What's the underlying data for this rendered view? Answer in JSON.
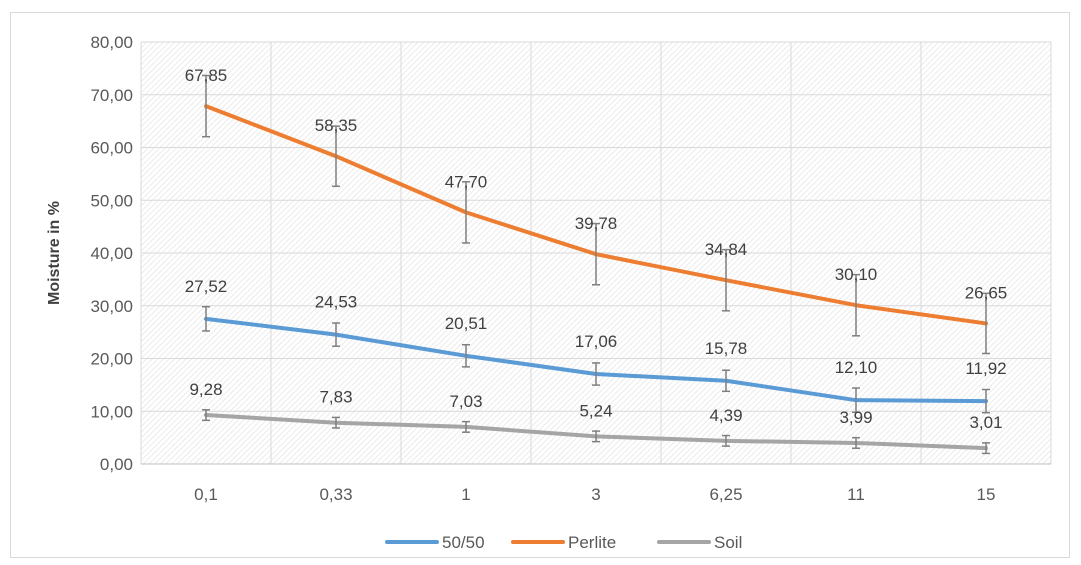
{
  "chart_data": {
    "type": "line",
    "title": "",
    "xlabel": "",
    "ylabel": "Moisture in %",
    "categories": [
      "0,1",
      "0,33",
      "1",
      "3",
      "6,25",
      "11",
      "15"
    ],
    "ylim": [
      0,
      80
    ],
    "yticks": [
      "0,00",
      "10,00",
      "20,00",
      "30,00",
      "40,00",
      "50,00",
      "60,00",
      "70,00",
      "80,00"
    ],
    "grid": "on (hatched plot area)",
    "legend_placement": "bottom",
    "series": [
      {
        "name": "50/50",
        "color": "#5b9bd5",
        "values": [
          27.52,
          24.53,
          20.51,
          17.06,
          15.78,
          12.1,
          11.92
        ],
        "labels": [
          "27,52",
          "24,53",
          "20,51",
          "17,06",
          "15,78",
          "12,10",
          "11,92"
        ],
        "error": [
          2.3,
          2.2,
          2.1,
          2.1,
          2.0,
          2.3,
          2.2
        ]
      },
      {
        "name": "Perlite",
        "color": "#ed7d31",
        "values": [
          67.85,
          58.35,
          47.7,
          39.78,
          34.84,
          30.1,
          26.65
        ],
        "labels": [
          "67,85",
          "58,35",
          "47,70",
          "39,78",
          "34,84",
          "30,10",
          "26,65"
        ],
        "error": [
          5.8,
          5.7,
          5.8,
          5.8,
          5.8,
          5.8,
          5.7
        ]
      },
      {
        "name": "Soil",
        "color": "#a5a5a5",
        "values": [
          9.28,
          7.83,
          7.03,
          5.24,
          4.39,
          3.99,
          3.01
        ],
        "labels": [
          "9,28",
          "7,83",
          "7,03",
          "5,24",
          "4,39",
          "3,99",
          "3,01"
        ],
        "error": [
          1.0,
          1.0,
          1.0,
          1.0,
          1.0,
          1.0,
          1.0
        ]
      }
    ]
  }
}
